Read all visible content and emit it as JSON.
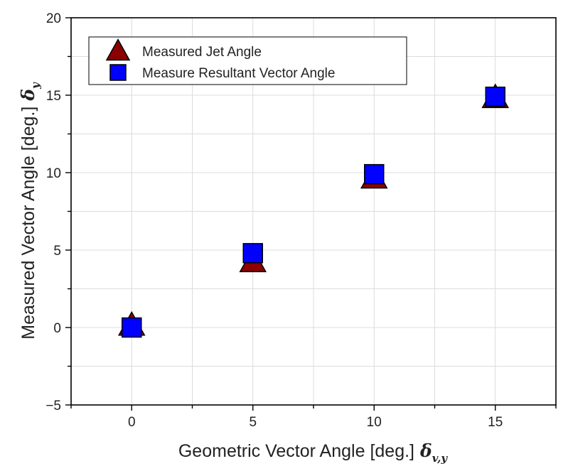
{
  "chart_data": {
    "type": "scatter",
    "xlabel": "Geometric Vector Angle [deg.]",
    "xlabel_symbol": "δ",
    "xlabel_subscript": "v,y",
    "ylabel": "Measured Vector Angle [deg.]",
    "ylabel_symbol": "δ",
    "ylabel_subscript": "y",
    "xlim": [
      -2.5,
      17.5
    ],
    "ylim": [
      -5,
      20
    ],
    "xticks": [
      0,
      5,
      10,
      15
    ],
    "yticks": [
      -5,
      0,
      5,
      10,
      15,
      20
    ],
    "grid": true,
    "legend_position": "top-left",
    "series": [
      {
        "name": "Measured Jet Angle",
        "marker": "triangle",
        "color": "#8b0000",
        "x": [
          0,
          5,
          10,
          15
        ],
        "y": [
          0.1,
          4.2,
          9.6,
          14.8
        ]
      },
      {
        "name": "Measure Resultant Vector Angle",
        "marker": "square",
        "color": "#0000ff",
        "x": [
          0,
          5,
          10,
          15
        ],
        "y": [
          0.0,
          4.8,
          9.9,
          14.9
        ]
      }
    ]
  }
}
